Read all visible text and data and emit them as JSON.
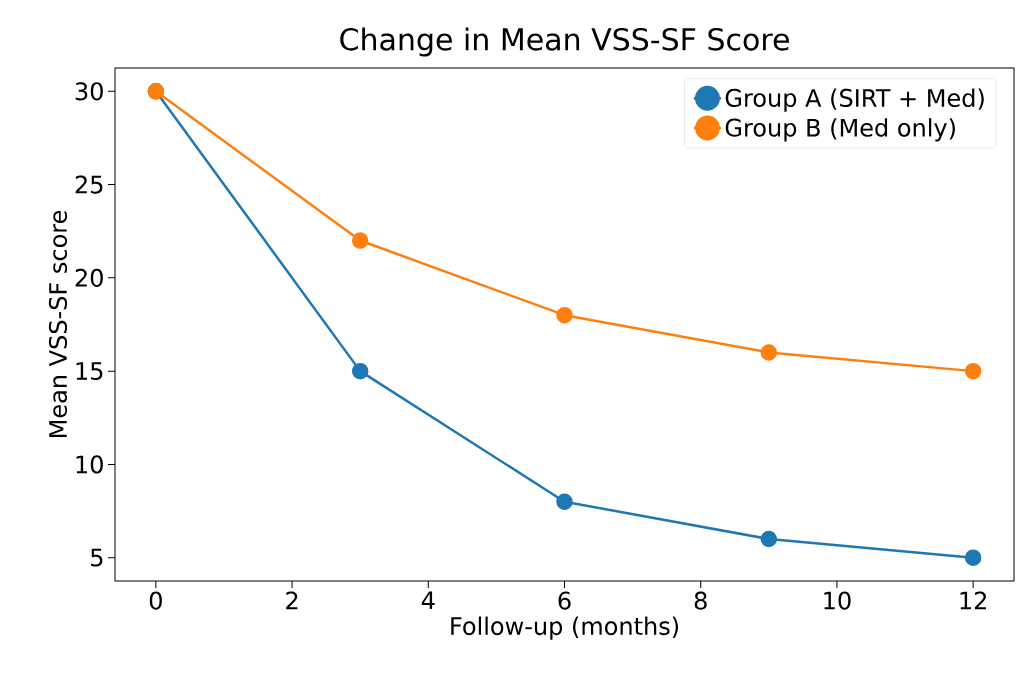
{
  "chart_data": {
    "type": "line",
    "title": "Change in Mean VSS-SF Score",
    "xlabel": "Follow-up (months)",
    "ylabel": "Mean VSS-SF score",
    "x": [
      0,
      3,
      6,
      9,
      12
    ],
    "series": [
      {
        "name": "Group A (SIRT + Med)",
        "color": "#1f77b4",
        "values": [
          30,
          15,
          8,
          6,
          5
        ]
      },
      {
        "name": "Group B (Med only)",
        "color": "#ff7f0e",
        "values": [
          30,
          22,
          18,
          16,
          15
        ]
      }
    ],
    "xlim": [
      -0.6,
      12.6
    ],
    "ylim": [
      3.75,
      31.25
    ],
    "xticks": [
      0,
      2,
      4,
      6,
      8,
      10,
      12
    ],
    "yticks": [
      5,
      10,
      15,
      20,
      25,
      30
    ],
    "legend": "top right",
    "marker": "circle",
    "line_style": "solid",
    "grid": false
  }
}
